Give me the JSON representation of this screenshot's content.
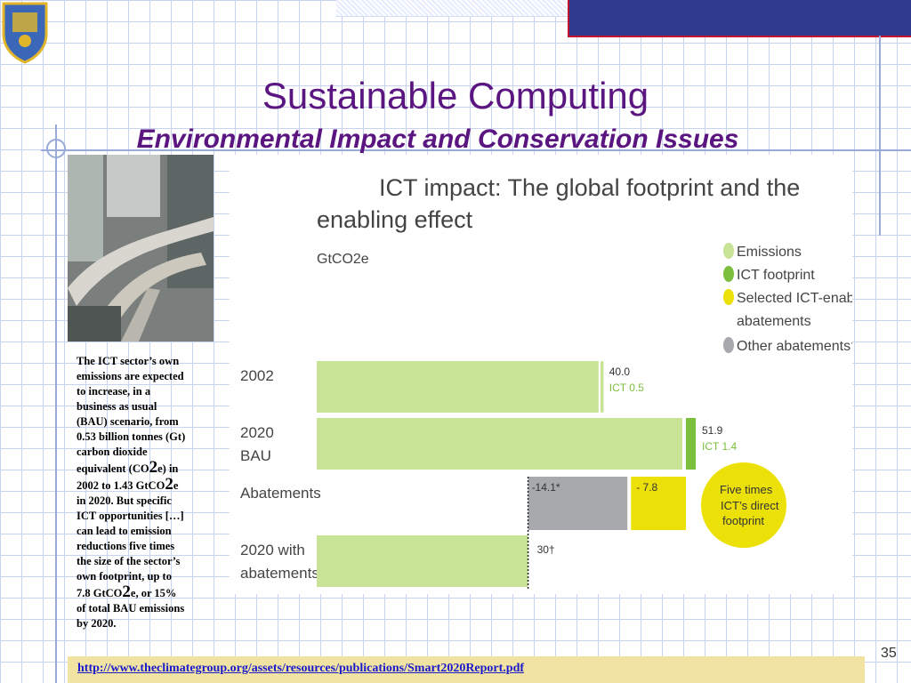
{
  "slide": {
    "title": "Sustainable Computing",
    "subtitle": "Environmental Impact and Conservation Issues",
    "page_number": "35",
    "caption_lines": [
      "The ICT sector’s own",
      "emissions are expected",
      "to increase, in a",
      "business as usual",
      "(BAU) scenario, from",
      "0.53 billion tonnes (Gt)",
      "carbon dioxide",
      "equivalent (CO2e) in",
      "2002 to 1.43 GtCO2e",
      "in 2020. But specific",
      "ICT opportunities […]",
      "can lead to emission",
      "reductions five times",
      "the size of the sector’s",
      "own footprint, up to",
      "7.8 GtCO2e, or 15%",
      "of total BAU emissions",
      "by 2020."
    ],
    "footer_link": "http://www.theclimategroup.org/assets/resources/publications/Smart2020Report.pdf",
    "colors": {
      "title": "#5a1580",
      "banner": "#303b8f",
      "footer": "#f1e4a2",
      "link": "#1a1acc"
    }
  },
  "chart_data": {
    "type": "bar",
    "title": "ICT impact: The global footprint and the enabling effect",
    "ylabel": "GtCO2e",
    "categories": [
      "2002",
      "2020 BAU",
      "Abatements",
      "2020 with abatements"
    ],
    "legend": [
      {
        "name": "Emissions",
        "color": "#c8e296"
      },
      {
        "name": "ICT footprint",
        "color": "#7bbf3d"
      },
      {
        "name": "Selected ICT-enabled abatements",
        "color": "#ece009"
      },
      {
        "name": "Other abatements†",
        "color": "#a7a9ac"
      }
    ],
    "bars": [
      {
        "category": "2002",
        "emissions": 40.0,
        "ict": 0.5,
        "label": "40.0",
        "ict_label": "ICT 0.5"
      },
      {
        "category": "2020 BAU",
        "emissions": 51.9,
        "ict": 1.4,
        "label": "51.9",
        "ict_label": "ICT 1.4"
      },
      {
        "category": "Abatements",
        "other_abatements": -14.1,
        "ict_abatements": -7.8,
        "label_other": "-14.1*",
        "label_ict": "- 7.8"
      },
      {
        "category": "2020 with abatements",
        "emissions": 30,
        "label": "30†"
      }
    ],
    "annotation": "Five times ICT’s direct footprint",
    "legend_position": "right"
  }
}
